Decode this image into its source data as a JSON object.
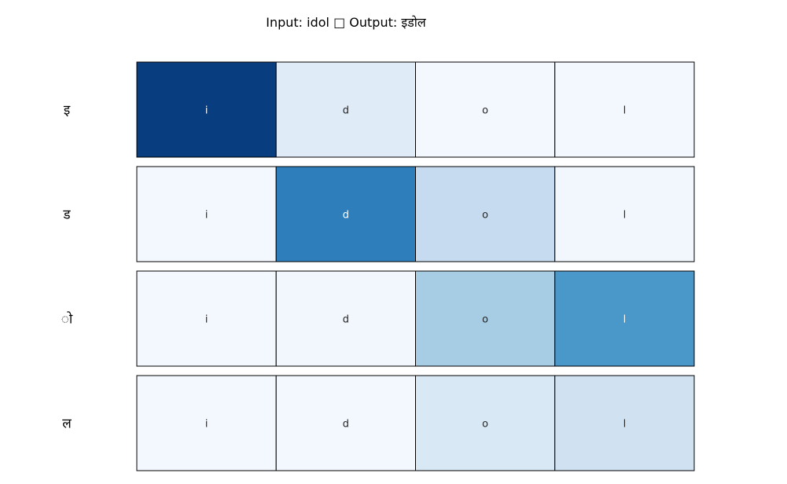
{
  "title": "Input: idol □ Output: इडोल",
  "chart_data": {
    "type": "heatmap",
    "title": "Input: idol □ Output: इडोल",
    "input_chars": [
      "i",
      "d",
      "o",
      "l"
    ],
    "output_chars": [
      "इ",
      "ड",
      "ो",
      "ल"
    ],
    "values": [
      [
        0.95,
        0.12,
        0.02,
        0.02
      ],
      [
        0.02,
        0.7,
        0.25,
        0.03
      ],
      [
        0.02,
        0.03,
        0.35,
        0.6
      ],
      [
        0.02,
        0.02,
        0.15,
        0.2
      ]
    ],
    "colormap": "Blues",
    "grid": false,
    "text_color_light": "#ffffff",
    "text_color_dark": "#262626"
  }
}
